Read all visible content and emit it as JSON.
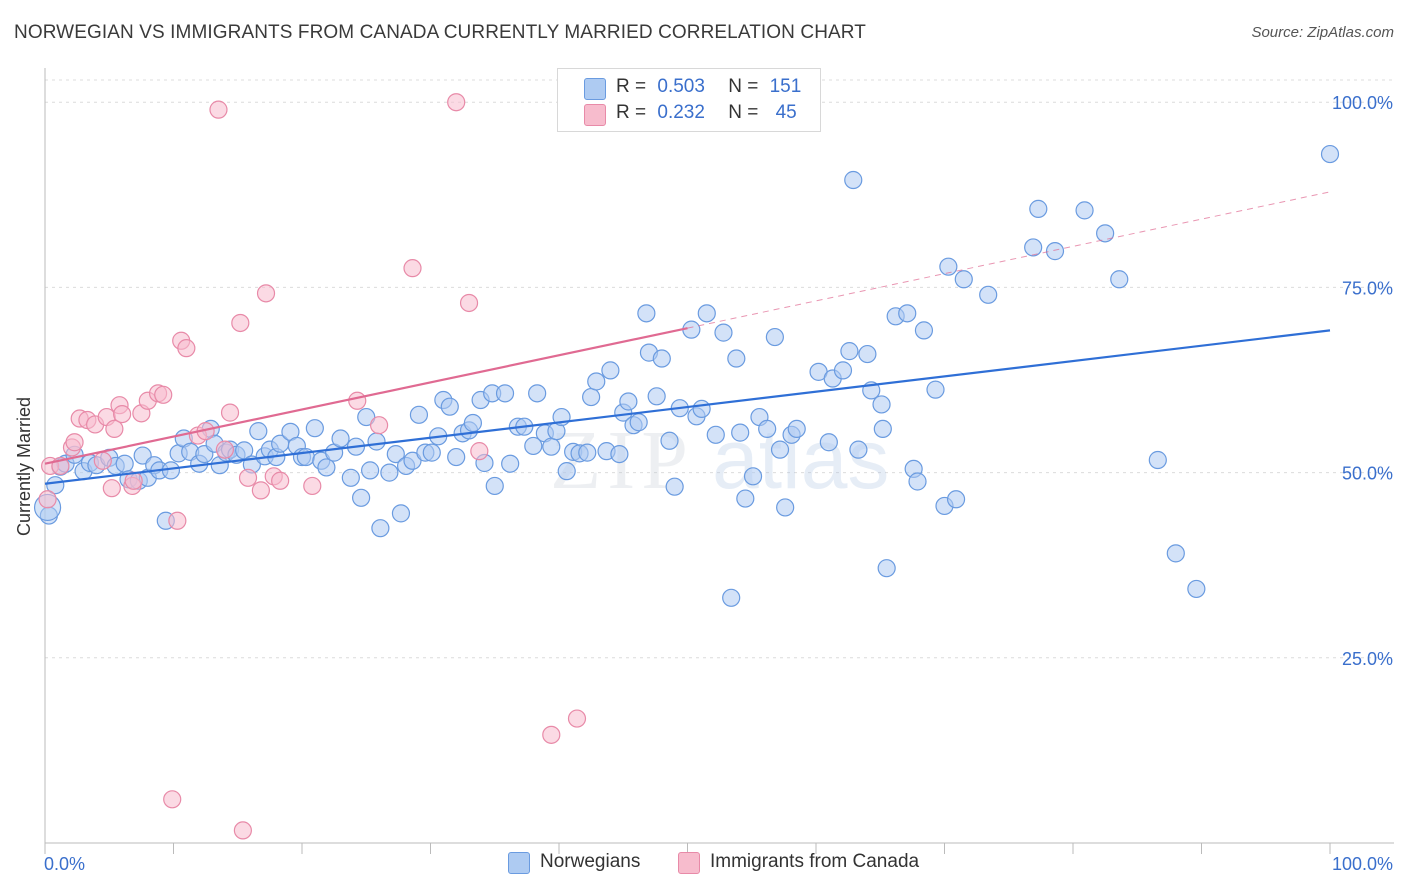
{
  "header": {
    "title": "NORWEGIAN VS IMMIGRANTS FROM CANADA CURRENTLY MARRIED CORRELATION CHART",
    "source": "Source: ZipAtlas.com"
  },
  "legend": {
    "rows": [
      {
        "r_label": "R =",
        "r_value": "0.503",
        "n_label": "N =",
        "n_value": "151",
        "color": "#aecbf2"
      },
      {
        "r_label": "R =",
        "r_value": "0.232",
        "n_label": "N =",
        "n_value": "45",
        "color": "#f7bccd"
      }
    ]
  },
  "bottom_legend": {
    "items": [
      {
        "label": "Norwegians",
        "color": "#aecbf2"
      },
      {
        "label": "Immigrants from Canada",
        "color": "#f7bccd"
      }
    ]
  },
  "watermark": {
    "zip": "ZIP",
    "atlas": "atlas"
  },
  "chart_data": {
    "type": "scatter",
    "title": "NORWEGIAN VS IMMIGRANTS FROM CANADA CURRENTLY MARRIED CORRELATION CHART",
    "ylabel": "Currently Married",
    "xlabel": "",
    "xlim": [
      0,
      100
    ],
    "ylim": [
      0,
      103
    ],
    "x_tick_labels": [
      "0.0%",
      "100.0%"
    ],
    "y_ticks": [
      25,
      50,
      75,
      100
    ],
    "y_tick_labels": [
      "25.0%",
      "50.0%",
      "75.0%",
      "100.0%"
    ],
    "grid": true,
    "colors": {
      "blue": "#6a9be0",
      "blue_fill": "#aecbf2",
      "blue_line": "#2f6fd6",
      "pink": "#e88aa8",
      "pink_fill": "#f7bccd",
      "pink_line": "#e06a92",
      "tick_label": "#3a6fcc"
    },
    "series": [
      {
        "name": "Norwegians",
        "trend": {
          "x0": 0,
          "y0": 48.5,
          "x1": 100,
          "y1": 69.2
        },
        "points": [
          [
            0.3,
            44.2
          ],
          [
            0.8,
            48.3
          ],
          [
            1.2,
            50.8
          ],
          [
            1.6,
            51.2
          ],
          [
            2.3,
            52.4
          ],
          [
            3.0,
            50.2
          ],
          [
            3.5,
            51.3
          ],
          [
            4.0,
            51.0
          ],
          [
            5.0,
            52.0
          ],
          [
            5.5,
            50.9
          ],
          [
            6.2,
            51.2
          ],
          [
            6.5,
            49.1
          ],
          [
            7.3,
            48.9
          ],
          [
            7.6,
            52.3
          ],
          [
            8.0,
            49.3
          ],
          [
            8.5,
            51.0
          ],
          [
            8.9,
            50.3
          ],
          [
            9.4,
            43.5
          ],
          [
            9.8,
            50.3
          ],
          [
            10.4,
            52.6
          ],
          [
            10.8,
            54.6
          ],
          [
            11.3,
            52.8
          ],
          [
            12.0,
            51.2
          ],
          [
            12.4,
            52.5
          ],
          [
            12.9,
            55.9
          ],
          [
            13.2,
            53.9
          ],
          [
            13.6,
            51.0
          ],
          [
            14.1,
            52.7
          ],
          [
            14.4,
            53.1
          ],
          [
            14.9,
            52.4
          ],
          [
            15.5,
            53.0
          ],
          [
            16.1,
            51.1
          ],
          [
            16.6,
            55.6
          ],
          [
            17.1,
            52.2
          ],
          [
            17.5,
            53.1
          ],
          [
            18.0,
            52.1
          ],
          [
            18.3,
            53.9
          ],
          [
            19.1,
            55.5
          ],
          [
            19.6,
            53.6
          ],
          [
            20.0,
            52.1
          ],
          [
            20.3,
            52.1
          ],
          [
            21.0,
            56.0
          ],
          [
            21.5,
            51.6
          ],
          [
            21.9,
            50.7
          ],
          [
            22.5,
            52.7
          ],
          [
            23.0,
            54.6
          ],
          [
            23.8,
            49.3
          ],
          [
            24.2,
            53.5
          ],
          [
            24.6,
            46.6
          ],
          [
            25.0,
            57.5
          ],
          [
            25.3,
            50.3
          ],
          [
            25.8,
            54.2
          ],
          [
            26.1,
            42.5
          ],
          [
            26.8,
            50.0
          ],
          [
            27.3,
            52.5
          ],
          [
            27.7,
            44.5
          ],
          [
            28.1,
            50.9
          ],
          [
            28.6,
            51.6
          ],
          [
            29.1,
            57.8
          ],
          [
            29.6,
            52.7
          ],
          [
            30.1,
            52.7
          ],
          [
            30.6,
            54.9
          ],
          [
            31.0,
            59.8
          ],
          [
            31.5,
            58.9
          ],
          [
            32.0,
            52.1
          ],
          [
            32.5,
            55.3
          ],
          [
            33.0,
            55.7
          ],
          [
            33.3,
            56.7
          ],
          [
            33.9,
            59.8
          ],
          [
            34.2,
            51.3
          ],
          [
            34.8,
            60.7
          ],
          [
            35.0,
            48.2
          ],
          [
            35.8,
            60.7
          ],
          [
            36.2,
            51.2
          ],
          [
            36.8,
            56.2
          ],
          [
            37.3,
            56.2
          ],
          [
            38.0,
            53.6
          ],
          [
            38.3,
            60.7
          ],
          [
            38.9,
            55.3
          ],
          [
            39.4,
            53.5
          ],
          [
            39.8,
            55.6
          ],
          [
            40.2,
            57.5
          ],
          [
            40.6,
            50.2
          ],
          [
            41.1,
            52.8
          ],
          [
            41.6,
            52.6
          ],
          [
            42.2,
            52.7
          ],
          [
            42.5,
            60.2
          ],
          [
            42.9,
            62.3
          ],
          [
            43.7,
            52.9
          ],
          [
            44.0,
            63.8
          ],
          [
            44.7,
            52.5
          ],
          [
            45.0,
            58.1
          ],
          [
            45.4,
            59.6
          ],
          [
            45.8,
            56.4
          ],
          [
            46.2,
            56.8
          ],
          [
            46.8,
            71.5
          ],
          [
            47.0,
            66.2
          ],
          [
            47.6,
            60.3
          ],
          [
            48.0,
            65.4
          ],
          [
            48.6,
            54.3
          ],
          [
            49.0,
            48.1
          ],
          [
            49.4,
            58.7
          ],
          [
            50.3,
            69.3
          ],
          [
            50.7,
            57.6
          ],
          [
            51.1,
            58.6
          ],
          [
            51.5,
            71.5
          ],
          [
            52.2,
            55.1
          ],
          [
            52.8,
            68.9
          ],
          [
            53.4,
            33.1
          ],
          [
            53.8,
            65.4
          ],
          [
            54.1,
            55.4
          ],
          [
            54.5,
            46.5
          ],
          [
            55.1,
            49.5
          ],
          [
            55.6,
            57.5
          ],
          [
            56.2,
            55.9
          ],
          [
            56.8,
            68.3
          ],
          [
            57.2,
            53.1
          ],
          [
            57.6,
            45.3
          ],
          [
            58.1,
            55.1
          ],
          [
            58.5,
            55.9
          ],
          [
            60.2,
            63.6
          ],
          [
            61.0,
            54.1
          ],
          [
            61.3,
            62.7
          ],
          [
            62.1,
            63.8
          ],
          [
            62.6,
            66.4
          ],
          [
            62.9,
            89.5
          ],
          [
            63.3,
            53.1
          ],
          [
            64.0,
            66.0
          ],
          [
            64.3,
            61.1
          ],
          [
            65.1,
            59.2
          ],
          [
            65.2,
            55.9
          ],
          [
            65.5,
            37.1
          ],
          [
            66.2,
            71.1
          ],
          [
            67.1,
            71.5
          ],
          [
            67.6,
            50.5
          ],
          [
            67.9,
            48.8
          ],
          [
            68.4,
            69.2
          ],
          [
            69.3,
            61.2
          ],
          [
            70.0,
            45.5
          ],
          [
            70.3,
            77.8
          ],
          [
            70.9,
            46.4
          ],
          [
            71.5,
            76.1
          ],
          [
            73.4,
            74.0
          ],
          [
            76.9,
            80.4
          ],
          [
            77.3,
            85.6
          ],
          [
            78.6,
            79.9
          ],
          [
            80.9,
            85.4
          ],
          [
            82.5,
            82.3
          ],
          [
            83.6,
            76.1
          ],
          [
            86.6,
            51.7
          ],
          [
            88.0,
            39.1
          ],
          [
            89.6,
            34.3
          ],
          [
            100.0,
            93.0
          ]
        ]
      },
      {
        "name": "Immigrants from Canada",
        "trend": {
          "x0": 0,
          "y0": 51.2,
          "x1": 50,
          "y1": 69.5
        },
        "trend_extension": {
          "x0": 50,
          "y0": 69.5,
          "x1": 100,
          "y1": 87.9
        },
        "points": [
          [
            0.2,
            46.4
          ],
          [
            0.4,
            50.9
          ],
          [
            1.2,
            50.9
          ],
          [
            2.1,
            53.4
          ],
          [
            2.3,
            54.1
          ],
          [
            2.7,
            57.3
          ],
          [
            3.3,
            57.1
          ],
          [
            3.9,
            56.5
          ],
          [
            4.5,
            51.6
          ],
          [
            4.8,
            57.5
          ],
          [
            5.2,
            47.9
          ],
          [
            5.4,
            55.9
          ],
          [
            5.8,
            59.1
          ],
          [
            6.0,
            57.9
          ],
          [
            6.8,
            48.2
          ],
          [
            6.9,
            48.9
          ],
          [
            7.5,
            58.0
          ],
          [
            8.0,
            59.7
          ],
          [
            8.8,
            60.7
          ],
          [
            9.2,
            60.5
          ],
          [
            9.9,
            5.9
          ],
          [
            10.3,
            43.5
          ],
          [
            10.6,
            67.8
          ],
          [
            11.0,
            66.8
          ],
          [
            11.9,
            55.0
          ],
          [
            12.5,
            55.6
          ],
          [
            13.5,
            99.0
          ],
          [
            14.0,
            53.1
          ],
          [
            14.4,
            58.1
          ],
          [
            15.2,
            70.2
          ],
          [
            15.4,
            1.7
          ],
          [
            15.8,
            49.3
          ],
          [
            16.8,
            47.6
          ],
          [
            17.2,
            74.2
          ],
          [
            17.8,
            49.5
          ],
          [
            18.3,
            48.9
          ],
          [
            20.8,
            48.2
          ],
          [
            24.3,
            59.7
          ],
          [
            26.0,
            56.4
          ],
          [
            28.6,
            77.6
          ],
          [
            32.0,
            100.0
          ],
          [
            33.0,
            72.9
          ],
          [
            33.8,
            52.9
          ],
          [
            39.4,
            14.6
          ],
          [
            41.4,
            16.8
          ]
        ]
      }
    ]
  }
}
